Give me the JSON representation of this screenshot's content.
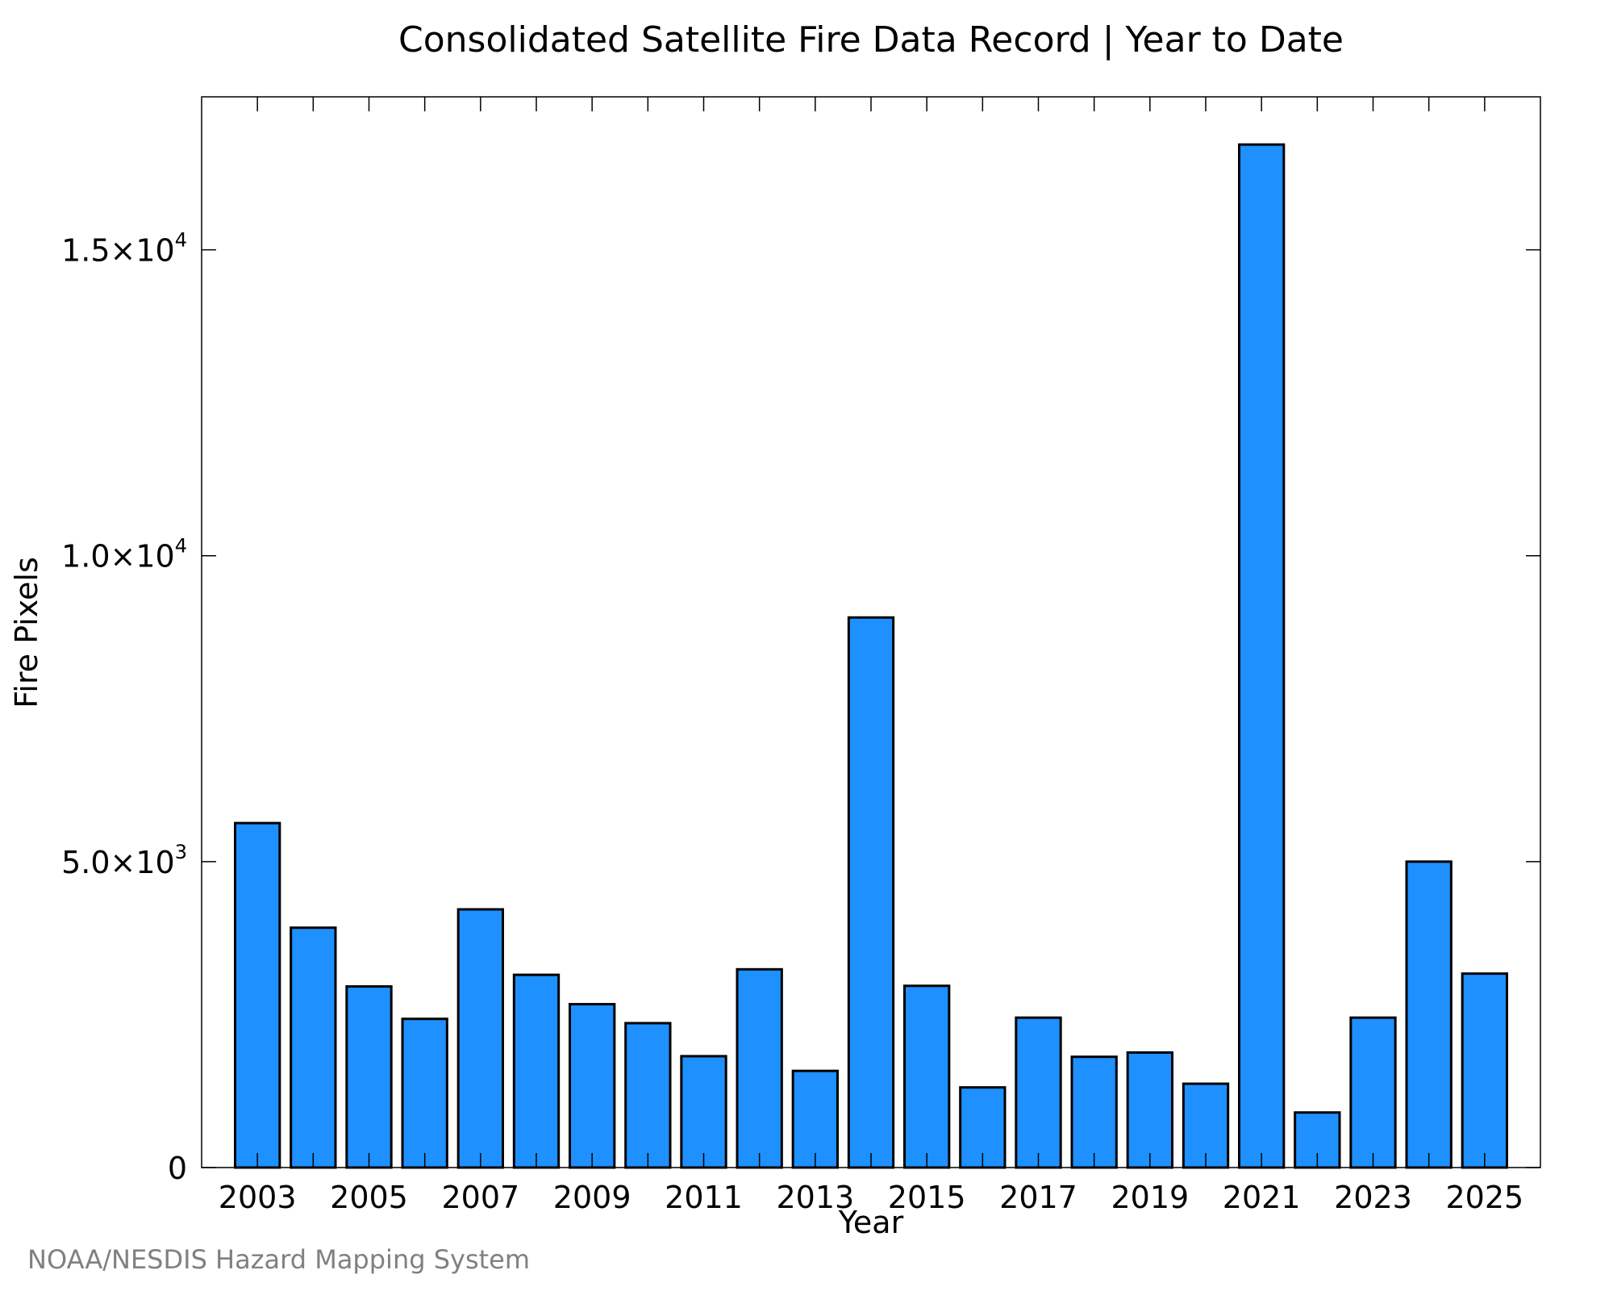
{
  "chart_data": {
    "type": "bar",
    "title": "Consolidated Satellite Fire Data Record | Year to Date",
    "xlabel": "Year",
    "ylabel": "Fire Pixels",
    "categories": [
      2003,
      2004,
      2005,
      2006,
      2007,
      2008,
      2009,
      2010,
      2011,
      2012,
      2013,
      2014,
      2015,
      2016,
      2017,
      2018,
      2019,
      2020,
      2021,
      2022,
      2023,
      2024,
      2025
    ],
    "values": [
      5630,
      3920,
      2960,
      2430,
      4220,
      3150,
      2670,
      2360,
      1820,
      3240,
      1580,
      8990,
      2970,
      1310,
      2450,
      1810,
      1880,
      1370,
      16720,
      900,
      2450,
      5000,
      3170
    ],
    "ylim": [
      0,
      17500
    ],
    "xlim": [
      2002,
      2026
    ],
    "x_tick_values": [
      2003,
      2005,
      2007,
      2009,
      2011,
      2013,
      2015,
      2017,
      2019,
      2021,
      2023,
      2025
    ],
    "x_tick_labels": [
      "2003",
      "2005",
      "2007",
      "2009",
      "2011",
      "2013",
      "2015",
      "2017",
      "2019",
      "2021",
      "2023",
      "2025"
    ],
    "y_ticks": [
      {
        "value": 0,
        "mantissa": "0",
        "exponent": ""
      },
      {
        "value": 5000,
        "mantissa": "5.0×10",
        "exponent": "3"
      },
      {
        "value": 10000,
        "mantissa": "1.0×10",
        "exponent": "4"
      },
      {
        "value": 15000,
        "mantissa": "1.5×10",
        "exponent": "4"
      }
    ],
    "bar_color": "#1e90ff",
    "grid": false,
    "legend": "none"
  },
  "credit": "NOAA/NESDIS Hazard Mapping System"
}
